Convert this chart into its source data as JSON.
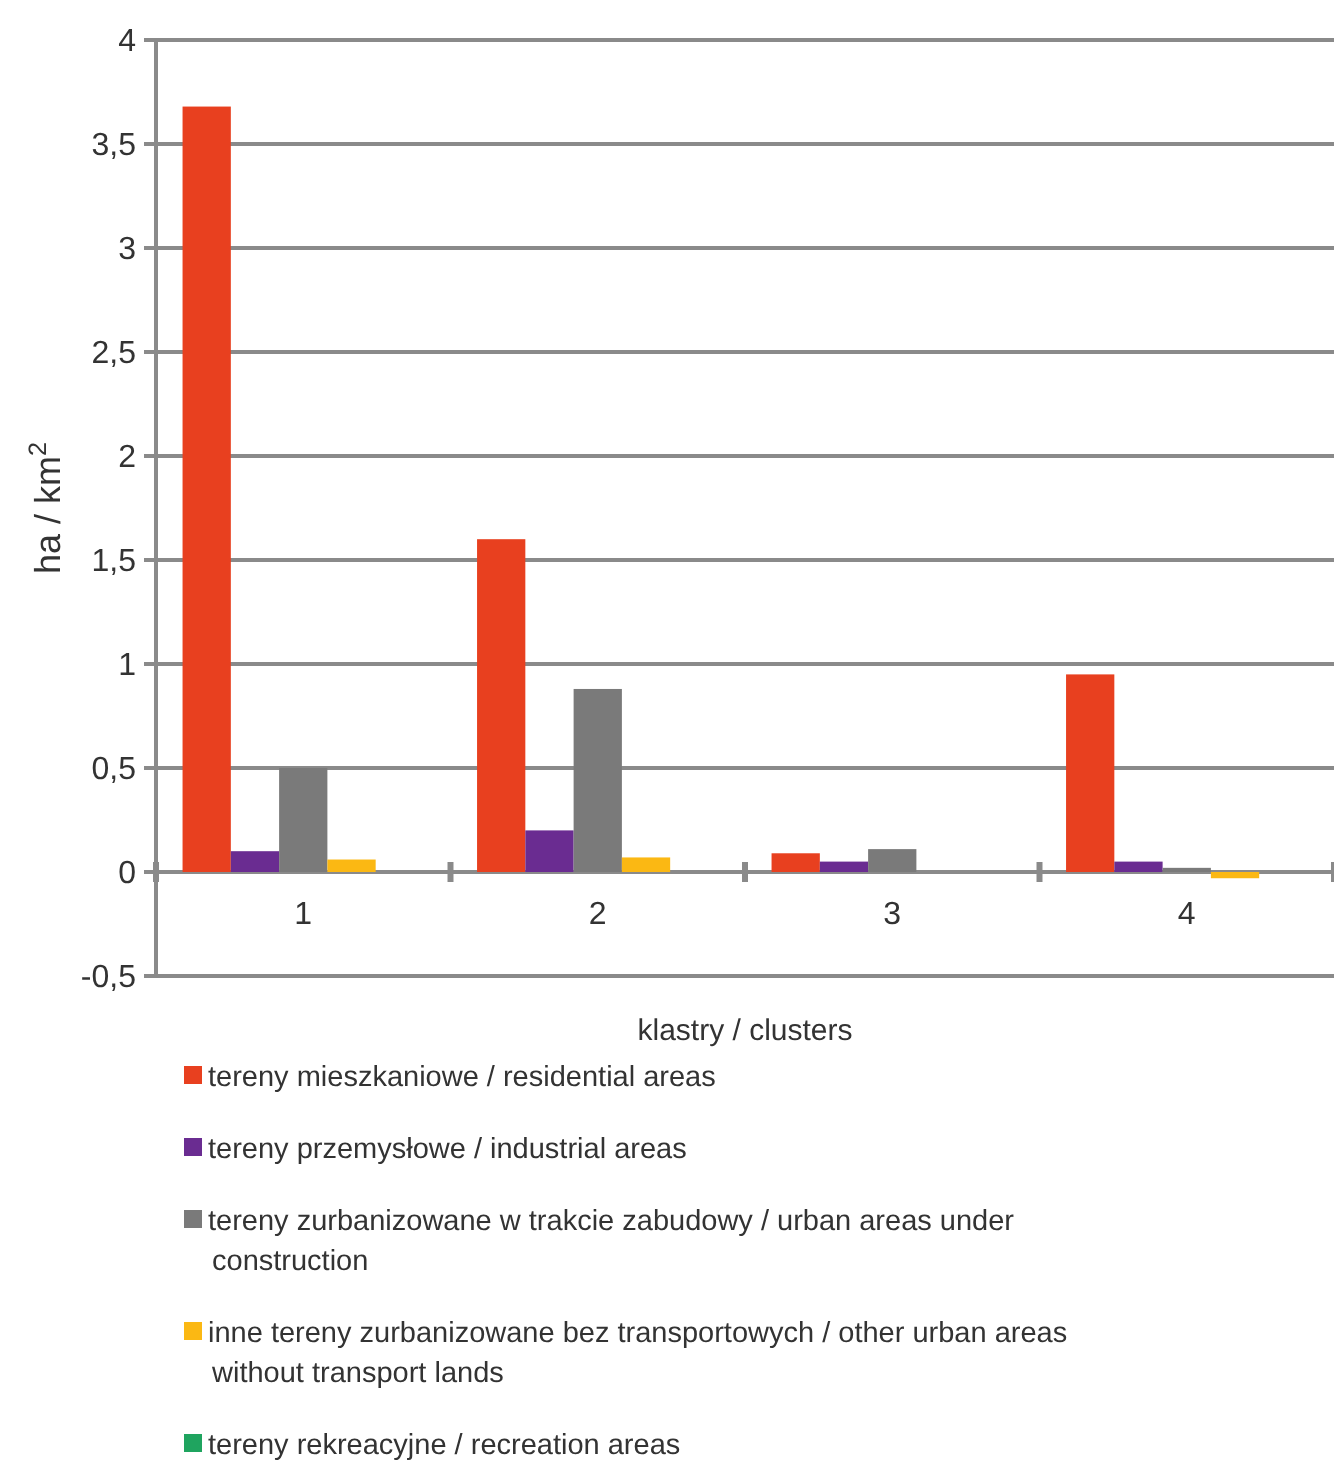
{
  "chart_data": {
    "type": "bar",
    "xlabel": "klastry / clusters",
    "ylabel": "ha / km$^{2}$",
    "categories": [
      "1",
      "2",
      "3",
      "4"
    ],
    "series": [
      {
        "name": "tereny mieszkaniowe / residential areas",
        "color": "#e8401f",
        "values": [
          3.68,
          1.6,
          0.09,
          0.95
        ]
      },
      {
        "name": "tereny przemysłowe / industrial areas",
        "color": "#6a2c91",
        "values": [
          0.1,
          0.2,
          0.05,
          0.05
        ]
      },
      {
        "name": "tereny zurbanizowane w trakcie zabudowy / urban areas under construction",
        "color": "#7a7a7a",
        "values": [
          0.5,
          0.88,
          0.11,
          0.02
        ]
      },
      {
        "name": "inne tereny zurbanizowane bez transportowych / other urban areas without transport lands",
        "color": "#fbb813",
        "values": [
          0.06,
          0.07,
          0,
          -0.03
        ]
      },
      {
        "name": "tereny rekreacyjne / recreation areas",
        "color": "#1fa45f",
        "values": [
          0,
          0,
          0,
          0
        ]
      }
    ],
    "ylim": [
      -0.5,
      4
    ],
    "yticks": [
      {
        "value": -0.5,
        "label": "-0,5"
      },
      0,
      {
        "value": 0.5,
        "label": "0,5"
      },
      1,
      {
        "value": 1.5,
        "label": "1,5"
      },
      2,
      {
        "value": 2.5,
        "label": "2,5"
      },
      3,
      {
        "value": 3.5,
        "label": "3,5"
      },
      4
    ],
    "grid": "y",
    "legend": "bottom"
  }
}
